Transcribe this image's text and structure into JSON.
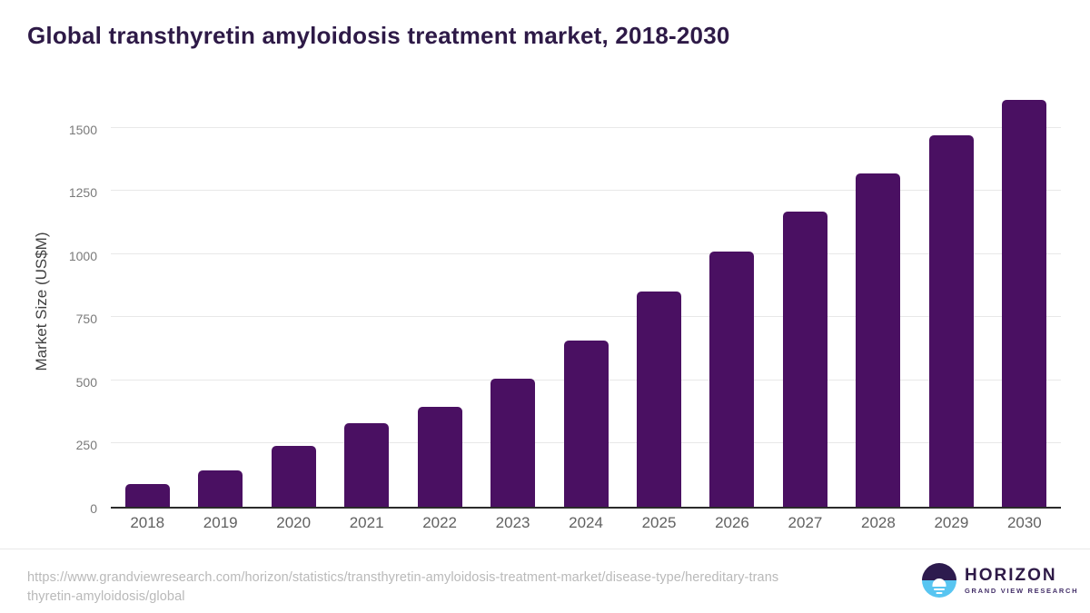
{
  "title": "Global transthyretin amyloidosis treatment market, 2018-2030",
  "chart_data": {
    "type": "bar",
    "title": "Global transthyretin amyloidosis treatment market, 2018-2030",
    "categories": [
      "2018",
      "2019",
      "2020",
      "2021",
      "2022",
      "2023",
      "2024",
      "2025",
      "2026",
      "2027",
      "2028",
      "2029",
      "2030"
    ],
    "values": [
      90,
      143,
      240,
      329,
      395,
      507,
      658,
      851,
      1009,
      1168,
      1317,
      1470,
      1610
    ],
    "xlabel": "",
    "ylabel": "Market Size (US$M)",
    "ylim": [
      0,
      1640
    ],
    "yticks": [
      0,
      250,
      500,
      750,
      1000,
      1250,
      1500
    ],
    "grid": "horizontal",
    "legend": "none",
    "bar_color": "#4a1062"
  },
  "footer": {
    "source_url_line1": "https://www.grandviewresearch.com/horizon/statistics/transthyretin-amyloidosis-treatment-market/disease-type/hereditary-trans",
    "source_url_line2": "thyretin-amyloidosis/global",
    "logo": {
      "name": "HORIZON",
      "subtitle": "GRAND VIEW RESEARCH"
    }
  },
  "colors": {
    "bar": "#4a1062",
    "title_text": "#2e1a47",
    "axis_line": "#2b2b2b",
    "gridline": "#e8e8e8",
    "ytick_text": "#7a7a7a",
    "xtick_text": "#616161",
    "ylabel_text": "#404040",
    "url_text": "#b9b9b9",
    "divider": "#e9e9e9",
    "logo_purple": "#2d1b4e",
    "logo_blue": "#58c5f1"
  }
}
